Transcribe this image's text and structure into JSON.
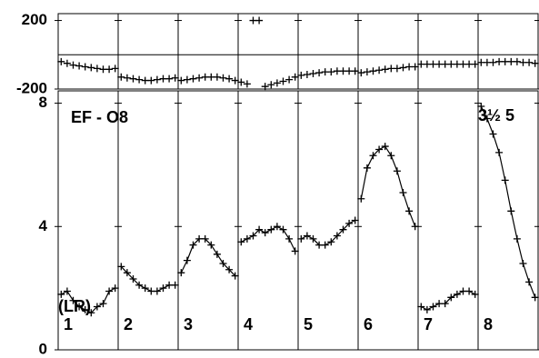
{
  "chart_data": [
    {
      "type": "scatter",
      "ylim": [
        -200,
        240
      ],
      "yticks": [
        -200,
        200
      ],
      "zero_line": true,
      "color": "#000000",
      "x": [
        0.05,
        0.15,
        0.25,
        0.35,
        0.45,
        0.55,
        0.65,
        0.75,
        0.85,
        0.95
      ],
      "segments": [
        {
          "values": [
            -40,
            -50,
            -60,
            -65,
            -70,
            -75,
            -80,
            -85,
            -85,
            -80
          ]
        },
        {
          "values": [
            -130,
            -135,
            -140,
            -145,
            -150,
            -150,
            -145,
            -140,
            -140,
            -135
          ]
        },
        {
          "values": [
            -150,
            -145,
            -140,
            -135,
            -130,
            -130,
            -130,
            -135,
            -140,
            -150
          ]
        },
        {
          "values": [
            -160,
            -170,
            200,
            200,
            -185,
            -175,
            -165,
            -155,
            -145,
            -130
          ]
        },
        {
          "values": [
            -120,
            -115,
            -110,
            -105,
            -100,
            -100,
            -95,
            -95,
            -95,
            -95
          ]
        },
        {
          "values": [
            -105,
            -100,
            -95,
            -90,
            -85,
            -80,
            -80,
            -75,
            -70,
            -70
          ]
        },
        {
          "values": [
            -55,
            -55,
            -55,
            -55,
            -55,
            -55,
            -55,
            -55,
            -55,
            -55
          ]
        },
        {
          "values": [
            -45,
            -45,
            -45,
            -40,
            -40,
            -40,
            -40,
            -45,
            -45,
            -50
          ]
        }
      ]
    },
    {
      "type": "scatter",
      "ylim": [
        0,
        8.4
      ],
      "yticks": [
        0,
        4,
        8
      ],
      "color": "#000000",
      "title": "EF - O8",
      "annotation": "3½ 5",
      "side_label": "(LR)",
      "x": [
        0.05,
        0.15,
        0.25,
        0.35,
        0.45,
        0.55,
        0.65,
        0.75,
        0.85,
        0.95
      ],
      "segments": [
        {
          "label": "1",
          "values": [
            1.8,
            1.9,
            1.6,
            1.4,
            1.3,
            1.2,
            1.4,
            1.5,
            1.9,
            2.0
          ]
        },
        {
          "label": "2",
          "values": [
            2.7,
            2.5,
            2.3,
            2.1,
            2.0,
            1.9,
            1.9,
            2.0,
            2.1,
            2.1
          ]
        },
        {
          "label": "3",
          "values": [
            2.5,
            2.9,
            3.4,
            3.6,
            3.6,
            3.4,
            3.1,
            2.8,
            2.6,
            2.4
          ]
        },
        {
          "label": "4",
          "values": [
            3.5,
            3.6,
            3.7,
            3.9,
            3.8,
            3.9,
            4.0,
            3.9,
            3.6,
            3.2
          ]
        },
        {
          "label": "5",
          "values": [
            3.6,
            3.7,
            3.6,
            3.4,
            3.4,
            3.5,
            3.7,
            3.9,
            4.1,
            4.2
          ]
        },
        {
          "label": "6",
          "values": [
            4.9,
            5.9,
            6.3,
            6.5,
            6.6,
            6.3,
            5.8,
            5.1,
            4.5,
            4.0
          ]
        },
        {
          "label": "7",
          "values": [
            1.4,
            1.3,
            1.4,
            1.5,
            1.5,
            1.7,
            1.8,
            1.9,
            1.9,
            1.8
          ]
        },
        {
          "label": "8",
          "values": [
            7.9,
            7.5,
            7.0,
            6.4,
            5.5,
            4.5,
            3.6,
            2.8,
            2.2,
            1.7
          ]
        }
      ]
    }
  ]
}
